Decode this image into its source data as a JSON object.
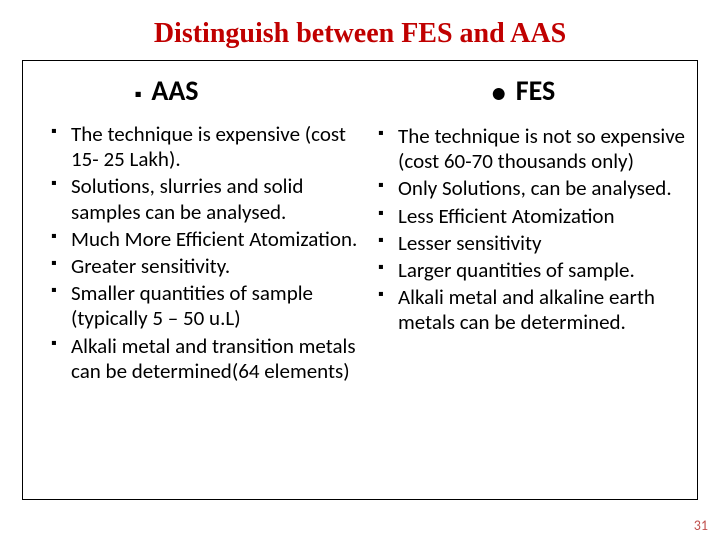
{
  "title": "Distinguish between FES and AAS",
  "left": {
    "heading": "AAS",
    "items": [
      "The technique is expensive (cost 15- 25 Lakh).",
      " Solutions, slurries and solid samples can be analysed.",
      "Much More Efficient Atomization.",
      "Greater sensitivity.",
      "Smaller quantities of sample (typically 5 – 50 u.L)",
      "Alkali metal and transition metals can be determined(64 elements)"
    ]
  },
  "right": {
    "heading": "FES",
    "items": [
      "The technique is  not so expensive  (cost  60-70 thousands only)",
      "Only Solutions, can be analysed.",
      "Less  Efficient Atomization",
      "Lesser sensitivity",
      "Larger quantities of sample.",
      "Alkali metal and alkaline earth metals can be determined."
    ]
  },
  "page_number": "31",
  "colors": {
    "title": "#c00000",
    "text": "#000000",
    "pagenum": "#c0504d",
    "border": "#000000",
    "background": "#ffffff"
  },
  "fonts": {
    "title_family": "Times New Roman",
    "body_family": "Calibri",
    "title_size_pt": 28,
    "heading_size_pt": 28,
    "body_size_pt": 21
  }
}
